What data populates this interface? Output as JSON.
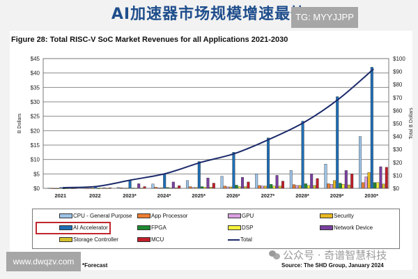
{
  "headline": "AI加速器市场规模增速最快",
  "badge": "TG: MYYJJPP",
  "figure_title": "Figure 28: Total RISC-V SoC Market Revenues for all Applications 2021-2030",
  "footnote": "*Forecast",
  "source": "Source: The SHD Group, January 2024",
  "watermark_url": "www.dwqzv.com",
  "wechat_watermark": "公众号 · 奇谱智慧科技",
  "chart_data": {
    "type": "bar",
    "title": "Figure 28: Total RISC-V SoC Market Revenues for all Applications 2021-2030",
    "xlabel": "",
    "ylabel": "B Dollars",
    "y2label": "Total B Dollars",
    "ylim": [
      0,
      45
    ],
    "y2lim": [
      0,
      100
    ],
    "yticks": [
      "$0",
      "$5",
      "$10",
      "$15",
      "$20",
      "$25",
      "$30",
      "$35",
      "$40",
      "$45"
    ],
    "y2ticks": [
      "$0",
      "$10",
      "$20",
      "$30",
      "$40",
      "$50",
      "$60",
      "$70",
      "$80",
      "$90",
      "$100"
    ],
    "grid": true,
    "legend_position": "bottom",
    "categories": [
      "2021",
      "2022",
      "2023*",
      "2024*",
      "2025*",
      "2026*",
      "2027*",
      "2028*",
      "2029*",
      "2030*"
    ],
    "series": [
      {
        "name": "CPU - General Purpose",
        "color": "#9dc3e6",
        "values": [
          0.1,
          0.2,
          0.3,
          1.5,
          2.7,
          4.2,
          5.0,
          6.2,
          8.4,
          18.0
        ]
      },
      {
        "name": "App Processor",
        "color": "#ed7d31",
        "values": [
          0.05,
          0.1,
          0.2,
          0.4,
          0.6,
          0.8,
          1.0,
          1.3,
          1.6,
          2.0
        ]
      },
      {
        "name": "GPU",
        "color": "#d9a0e0",
        "values": [
          0.0,
          0.05,
          0.1,
          0.2,
          0.3,
          0.5,
          0.8,
          1.0,
          1.4,
          4.0
        ]
      },
      {
        "name": "Security",
        "color": "#e8b820",
        "values": [
          0.0,
          0.05,
          0.1,
          0.2,
          0.3,
          0.5,
          0.8,
          1.0,
          2.7,
          5.5
        ]
      },
      {
        "name": "AI Accelerator",
        "color": "#1f6eb4",
        "values": [
          0.3,
          0.8,
          2.6,
          5.0,
          9.3,
          12.5,
          17.5,
          23.3,
          31.8,
          42.0
        ]
      },
      {
        "name": "FPGA",
        "color": "#1e8a30",
        "values": [
          0.0,
          0.05,
          0.1,
          0.3,
          0.6,
          1.1,
          1.4,
          1.6,
          1.8,
          2.0
        ]
      },
      {
        "name": "DSP",
        "color": "#f5f03a",
        "values": [
          0.0,
          0.05,
          0.1,
          0.2,
          0.4,
          0.6,
          0.8,
          1.0,
          1.4,
          2.0
        ]
      },
      {
        "name": "Network Device",
        "color": "#7a3fa0",
        "values": [
          0.1,
          0.2,
          1.6,
          2.2,
          3.6,
          3.8,
          4.5,
          5.0,
          6.2,
          7.5
        ]
      },
      {
        "name": "Storage Controller",
        "color": "#d4c02a",
        "values": [
          0.0,
          0.05,
          0.1,
          0.2,
          0.4,
          0.6,
          0.8,
          1.0,
          1.2,
          1.5
        ]
      },
      {
        "name": "MCU",
        "color": "#c0202a",
        "values": [
          0.1,
          0.2,
          0.6,
          0.9,
          1.8,
          2.2,
          2.5,
          3.4,
          5.0,
          7.3
        ]
      }
    ],
    "line_series": {
      "name": "Total",
      "color": "#1b2a6b",
      "axis": "right",
      "values": [
        0.5,
        1.5,
        6.5,
        11.5,
        20.0,
        27.0,
        38.0,
        51.0,
        69.0,
        92.0
      ]
    },
    "annotations": [
      "AI Accelerator legend entry highlighted with red box"
    ]
  },
  "legend": {
    "items": [
      {
        "label": "CPU - General Purpose",
        "color": "#9dc3e6"
      },
      {
        "label": "App Processor",
        "color": "#ed7d31"
      },
      {
        "label": "GPU",
        "color": "#d9a0e0"
      },
      {
        "label": "Security",
        "color": "#e8b820"
      },
      {
        "label": "AI Accelerator",
        "color": "#1f6eb4"
      },
      {
        "label": "FPGA",
        "color": "#1e8a30"
      },
      {
        "label": "DSP",
        "color": "#f5f03a"
      },
      {
        "label": "Network Device",
        "color": "#7a3fa0"
      },
      {
        "label": "Storage Controller",
        "color": "#d4c02a"
      },
      {
        "label": "MCU",
        "color": "#c0202a"
      },
      {
        "label": "Total",
        "color": "#1b2a6b"
      }
    ]
  }
}
